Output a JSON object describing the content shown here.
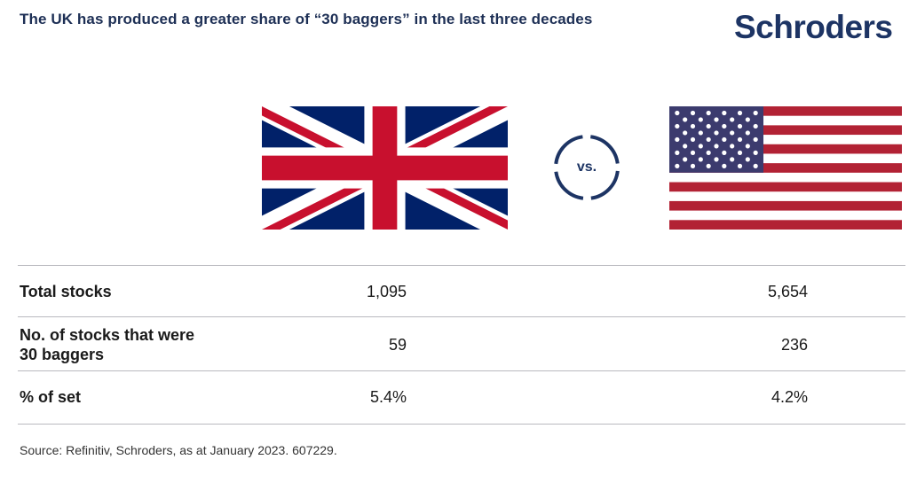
{
  "header": {
    "title": "The UK has produced a greater share of “30 baggers” in the last three decades",
    "logo_text": "Schroders"
  },
  "comparison": {
    "left_flag": "uk-flag",
    "right_flag": "us-flag",
    "vs_label": "vs."
  },
  "table": {
    "rows": [
      {
        "label": "Total stocks",
        "uk": "1,095",
        "us": "5,654"
      },
      {
        "label": "No. of stocks that were 30 baggers",
        "uk": "59",
        "us": "236"
      },
      {
        "label": "% of set",
        "uk": "5.4%",
        "us": "4.2%"
      }
    ]
  },
  "footer": {
    "source": "Source: Refinitiv, Schroders, as at January 2023. 607229."
  },
  "colors": {
    "brand_navy": "#1d3464",
    "uk_blue": "#012169",
    "uk_red": "#c8102e",
    "us_blue": "#3c3b6e",
    "us_red": "#b22234"
  }
}
